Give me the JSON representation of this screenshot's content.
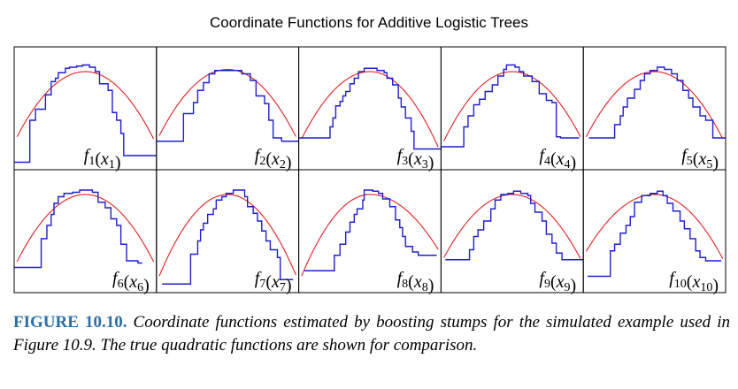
{
  "chart_data": {
    "type": "line",
    "title": "Coordinate Functions for Additive Logistic Trees",
    "grid": false,
    "panel_layout": "2 rows x 5 columns",
    "colors": {
      "estimated": "#1f1fcf",
      "true": "#e02020",
      "frame": "#000000"
    },
    "x_domain": [
      0,
      1
    ],
    "y_domain": [
      0,
      1
    ],
    "panels": [
      {
        "name": "f1(x1)",
        "label_func": "f",
        "label_index": "1",
        "label_arg": "x",
        "label_arg_index": "1",
        "label_anchor": "center",
        "true_curve": {
          "peak_x": 0.5,
          "peak_y": 0.84,
          "end_left": 0.2,
          "end_right": 0.18
        },
        "estimated_steps": [
          [
            0.0,
            0.02
          ],
          [
            0.09,
            0.02
          ],
          [
            0.11,
            0.4
          ],
          [
            0.15,
            0.5
          ],
          [
            0.22,
            0.63
          ],
          [
            0.26,
            0.75
          ],
          [
            0.29,
            0.78
          ],
          [
            0.31,
            0.83
          ],
          [
            0.36,
            0.87
          ],
          [
            0.39,
            0.88
          ],
          [
            0.44,
            0.89
          ],
          [
            0.48,
            0.9
          ],
          [
            0.53,
            0.88
          ],
          [
            0.57,
            0.84
          ],
          [
            0.6,
            0.73
          ],
          [
            0.66,
            0.67
          ],
          [
            0.69,
            0.47
          ],
          [
            0.72,
            0.4
          ],
          [
            0.75,
            0.28
          ],
          [
            0.77,
            0.08
          ],
          [
            0.87,
            0.08
          ],
          [
            1.0,
            0.08
          ]
        ]
      },
      {
        "name": "f2(x2)",
        "label_func": "f",
        "label_index": "2",
        "label_arg": "x",
        "label_arg_index": "2",
        "label_anchor": "right",
        "true_curve": {
          "peak_x": 0.5,
          "peak_y": 0.86,
          "end_left": 0.21,
          "end_right": 0.2
        },
        "estimated_steps": [
          [
            0.0,
            0.21
          ],
          [
            0.17,
            0.21
          ],
          [
            0.19,
            0.46
          ],
          [
            0.26,
            0.56
          ],
          [
            0.29,
            0.67
          ],
          [
            0.33,
            0.74
          ],
          [
            0.37,
            0.82
          ],
          [
            0.41,
            0.85
          ],
          [
            0.45,
            0.85
          ],
          [
            0.55,
            0.85
          ],
          [
            0.6,
            0.82
          ],
          [
            0.66,
            0.76
          ],
          [
            0.7,
            0.62
          ],
          [
            0.76,
            0.55
          ],
          [
            0.79,
            0.4
          ],
          [
            0.82,
            0.24
          ],
          [
            0.88,
            0.21
          ],
          [
            1.0,
            0.21
          ]
        ]
      },
      {
        "name": "f3(x3)",
        "label_func": "f",
        "label_index": "3",
        "label_arg": "x",
        "label_arg_index": "3",
        "label_anchor": "right",
        "true_curve": {
          "peak_x": 0.5,
          "peak_y": 0.84,
          "end_left": 0.18,
          "end_right": 0.1
        },
        "estimated_steps": [
          [
            0.0,
            0.24
          ],
          [
            0.2,
            0.24
          ],
          [
            0.22,
            0.34
          ],
          [
            0.24,
            0.42
          ],
          [
            0.26,
            0.53
          ],
          [
            0.29,
            0.57
          ],
          [
            0.31,
            0.62
          ],
          [
            0.33,
            0.66
          ],
          [
            0.36,
            0.73
          ],
          [
            0.39,
            0.78
          ],
          [
            0.42,
            0.84
          ],
          [
            0.46,
            0.87
          ],
          [
            0.51,
            0.87
          ],
          [
            0.55,
            0.85
          ],
          [
            0.6,
            0.83
          ],
          [
            0.62,
            0.78
          ],
          [
            0.66,
            0.72
          ],
          [
            0.7,
            0.6
          ],
          [
            0.72,
            0.52
          ],
          [
            0.75,
            0.42
          ],
          [
            0.79,
            0.3
          ],
          [
            0.81,
            0.14
          ],
          [
            0.9,
            0.14
          ],
          [
            1.0,
            0.14
          ]
        ]
      },
      {
        "name": "f4(x4)",
        "label_func": "f",
        "label_index": "4",
        "label_arg": "x",
        "label_arg_index": "4",
        "label_anchor": "right",
        "true_curve": {
          "peak_x": 0.5,
          "peak_y": 0.84,
          "end_left": 0.16,
          "end_right": 0.2
        },
        "estimated_steps": [
          [
            0.0,
            0.16
          ],
          [
            0.13,
            0.16
          ],
          [
            0.16,
            0.34
          ],
          [
            0.19,
            0.44
          ],
          [
            0.23,
            0.54
          ],
          [
            0.27,
            0.59
          ],
          [
            0.31,
            0.66
          ],
          [
            0.36,
            0.72
          ],
          [
            0.4,
            0.8
          ],
          [
            0.44,
            0.86
          ],
          [
            0.46,
            0.9
          ],
          [
            0.52,
            0.88
          ],
          [
            0.55,
            0.84
          ],
          [
            0.58,
            0.8
          ],
          [
            0.64,
            0.75
          ],
          [
            0.69,
            0.64
          ],
          [
            0.74,
            0.58
          ],
          [
            0.78,
            0.56
          ],
          [
            0.81,
            0.25
          ],
          [
            0.84,
            0.24
          ],
          [
            0.94,
            0.24
          ],
          [
            0.97,
            0.24
          ]
        ]
      },
      {
        "name": "f5(x5)",
        "label_func": "f",
        "label_index": "5",
        "label_arg": "x",
        "label_arg_index": "5",
        "label_anchor": "right",
        "true_curve": {
          "peak_x": 0.5,
          "peak_y": 0.84,
          "end_left": 0.2,
          "end_right": 0.18
        },
        "estimated_steps": [
          [
            0.04,
            0.24
          ],
          [
            0.2,
            0.24
          ],
          [
            0.22,
            0.36
          ],
          [
            0.26,
            0.44
          ],
          [
            0.28,
            0.52
          ],
          [
            0.31,
            0.6
          ],
          [
            0.36,
            0.68
          ],
          [
            0.4,
            0.76
          ],
          [
            0.43,
            0.82
          ],
          [
            0.47,
            0.85
          ],
          [
            0.52,
            0.88
          ],
          [
            0.57,
            0.86
          ],
          [
            0.62,
            0.82
          ],
          [
            0.66,
            0.76
          ],
          [
            0.7,
            0.67
          ],
          [
            0.74,
            0.6
          ],
          [
            0.77,
            0.52
          ],
          [
            0.82,
            0.44
          ],
          [
            0.86,
            0.4
          ],
          [
            0.91,
            0.24
          ],
          [
            0.96,
            0.24
          ],
          [
            1.0,
            0.24
          ]
        ]
      },
      {
        "name": "f6(x6)",
        "label_func": "f",
        "label_index": "6",
        "label_arg": "x",
        "label_arg_index": "6",
        "label_anchor": "right",
        "true_curve": {
          "peak_x": 0.5,
          "peak_y": 0.84,
          "end_left": 0.18,
          "end_right": 0.18
        },
        "estimated_steps": [
          [
            0.0,
            0.18
          ],
          [
            0.17,
            0.18
          ],
          [
            0.19,
            0.44
          ],
          [
            0.23,
            0.56
          ],
          [
            0.26,
            0.66
          ],
          [
            0.28,
            0.76
          ],
          [
            0.31,
            0.82
          ],
          [
            0.35,
            0.85
          ],
          [
            0.41,
            0.86
          ],
          [
            0.46,
            0.88
          ],
          [
            0.51,
            0.88
          ],
          [
            0.55,
            0.86
          ],
          [
            0.59,
            0.77
          ],
          [
            0.64,
            0.72
          ],
          [
            0.68,
            0.62
          ],
          [
            0.72,
            0.56
          ],
          [
            0.75,
            0.39
          ],
          [
            0.79,
            0.24
          ],
          [
            0.87,
            0.22
          ],
          [
            0.9,
            0.22
          ]
        ]
      },
      {
        "name": "f7(x7)",
        "label_func": "f",
        "label_index": "7",
        "label_arg": "x",
        "label_arg_index": "7",
        "label_anchor": "right",
        "true_curve": {
          "peak_x": 0.5,
          "peak_y": 0.84,
          "end_left": 0.04,
          "end_right": 0.05
        },
        "estimated_steps": [
          [
            0.04,
            0.03
          ],
          [
            0.22,
            0.03
          ],
          [
            0.24,
            0.3
          ],
          [
            0.29,
            0.42
          ],
          [
            0.31,
            0.52
          ],
          [
            0.33,
            0.58
          ],
          [
            0.36,
            0.66
          ],
          [
            0.4,
            0.71
          ],
          [
            0.42,
            0.79
          ],
          [
            0.46,
            0.82
          ],
          [
            0.49,
            0.85
          ],
          [
            0.54,
            0.88
          ],
          [
            0.58,
            0.88
          ],
          [
            0.62,
            0.82
          ],
          [
            0.64,
            0.73
          ],
          [
            0.68,
            0.67
          ],
          [
            0.71,
            0.6
          ],
          [
            0.74,
            0.51
          ],
          [
            0.77,
            0.42
          ],
          [
            0.8,
            0.34
          ],
          [
            0.85,
            0.27
          ],
          [
            0.87,
            0.07
          ],
          [
            0.96,
            0.07
          ]
        ]
      },
      {
        "name": "f8(x8)",
        "label_func": "f",
        "label_index": "8",
        "label_arg": "x",
        "label_arg_index": "8",
        "label_anchor": "right",
        "true_curve": {
          "peak_x": 0.5,
          "peak_y": 0.84,
          "end_left": 0.04,
          "end_right": 0.3
        },
        "estimated_steps": [
          [
            0.04,
            0.15
          ],
          [
            0.23,
            0.15
          ],
          [
            0.25,
            0.29
          ],
          [
            0.29,
            0.39
          ],
          [
            0.33,
            0.5
          ],
          [
            0.36,
            0.59
          ],
          [
            0.39,
            0.66
          ],
          [
            0.41,
            0.71
          ],
          [
            0.45,
            0.79
          ],
          [
            0.46,
            0.88
          ],
          [
            0.52,
            0.87
          ],
          [
            0.56,
            0.85
          ],
          [
            0.59,
            0.8
          ],
          [
            0.64,
            0.73
          ],
          [
            0.68,
            0.61
          ],
          [
            0.71,
            0.54
          ],
          [
            0.73,
            0.46
          ],
          [
            0.75,
            0.37
          ],
          [
            0.8,
            0.32
          ],
          [
            0.84,
            0.29
          ],
          [
            0.97,
            0.29
          ]
        ]
      },
      {
        "name": "f9(x9)",
        "label_func": "f",
        "label_index": "9",
        "label_arg": "x",
        "label_arg_index": "9",
        "label_anchor": "right",
        "true_curve": {
          "peak_x": 0.5,
          "peak_y": 0.84,
          "end_left": 0.22,
          "end_right": 0.21
        },
        "estimated_steps": [
          [
            0.03,
            0.25
          ],
          [
            0.17,
            0.25
          ],
          [
            0.2,
            0.34
          ],
          [
            0.23,
            0.46
          ],
          [
            0.26,
            0.52
          ],
          [
            0.3,
            0.6
          ],
          [
            0.35,
            0.71
          ],
          [
            0.38,
            0.79
          ],
          [
            0.42,
            0.84
          ],
          [
            0.47,
            0.85
          ],
          [
            0.51,
            0.87
          ],
          [
            0.56,
            0.85
          ],
          [
            0.61,
            0.83
          ],
          [
            0.63,
            0.76
          ],
          [
            0.66,
            0.68
          ],
          [
            0.71,
            0.6
          ],
          [
            0.74,
            0.48
          ],
          [
            0.78,
            0.4
          ],
          [
            0.81,
            0.31
          ],
          [
            0.85,
            0.25
          ],
          [
            1.0,
            0.25
          ]
        ]
      },
      {
        "name": "f10(x10)",
        "label_func": "f",
        "label_index": "10",
        "label_arg": "x",
        "label_arg_index": "10",
        "label_anchor": "right",
        "true_curve": {
          "peak_x": 0.5,
          "peak_y": 0.84,
          "end_left": 0.28,
          "end_right": 0.21
        },
        "estimated_steps": [
          [
            0.03,
            0.1
          ],
          [
            0.16,
            0.1
          ],
          [
            0.19,
            0.33
          ],
          [
            0.22,
            0.39
          ],
          [
            0.26,
            0.49
          ],
          [
            0.3,
            0.56
          ],
          [
            0.33,
            0.64
          ],
          [
            0.36,
            0.77
          ],
          [
            0.41,
            0.83
          ],
          [
            0.47,
            0.85
          ],
          [
            0.52,
            0.87
          ],
          [
            0.56,
            0.83
          ],
          [
            0.59,
            0.76
          ],
          [
            0.63,
            0.69
          ],
          [
            0.68,
            0.6
          ],
          [
            0.71,
            0.53
          ],
          [
            0.75,
            0.44
          ],
          [
            0.79,
            0.33
          ],
          [
            0.82,
            0.27
          ],
          [
            0.86,
            0.24
          ],
          [
            0.97,
            0.24
          ]
        ]
      }
    ]
  },
  "caption": {
    "label": "FIGURE 10.10.",
    "text": "Coordinate functions estimated by boosting stumps for the simulated example used in Figure 10.9. The true quadratic functions are shown for comparison."
  }
}
